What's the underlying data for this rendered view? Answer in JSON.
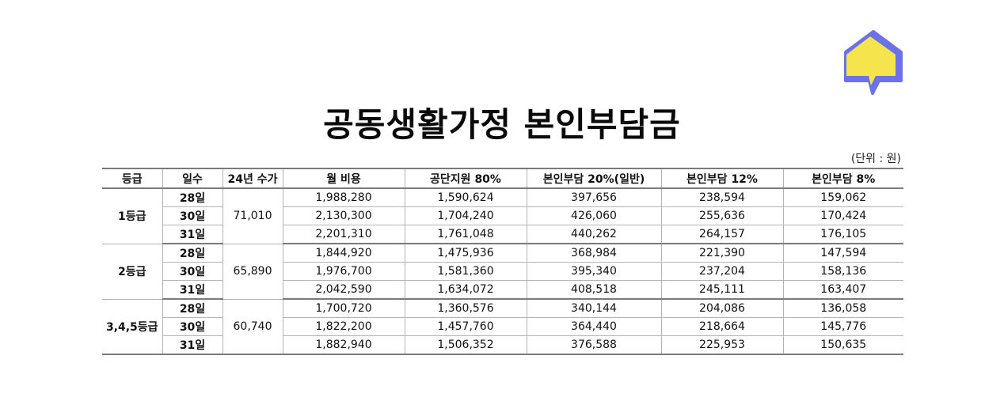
{
  "title": "공동생활가정 본인부담금",
  "unit_label": "(단위 : 원)",
  "logo": {
    "icon": "house-speech-bubble-icon",
    "fill": "#f6e44c",
    "stroke": "#6b72e8"
  },
  "table": {
    "headers": [
      "등급",
      "일수",
      "24년 수가",
      "월 비용",
      "공단지원 80%",
      "본인부담 20%(일반)",
      "본인부담 12%",
      "본인부담 8%"
    ],
    "groups": [
      {
        "grade": "1등급",
        "fee": "71,010",
        "rows": [
          {
            "days": "28일",
            "monthly": "1,988,280",
            "support80": "1,590,624",
            "self20": "397,656",
            "self12": "238,594",
            "self8": "159,062"
          },
          {
            "days": "30일",
            "monthly": "2,130,300",
            "support80": "1,704,240",
            "self20": "426,060",
            "self12": "255,636",
            "self8": "170,424"
          },
          {
            "days": "31일",
            "monthly": "2,201,310",
            "support80": "1,761,048",
            "self20": "440,262",
            "self12": "264,157",
            "self8": "176,105"
          }
        ]
      },
      {
        "grade": "2등급",
        "fee": "65,890",
        "rows": [
          {
            "days": "28일",
            "monthly": "1,844,920",
            "support80": "1,475,936",
            "self20": "368,984",
            "self12": "221,390",
            "self8": "147,594"
          },
          {
            "days": "30일",
            "monthly": "1,976,700",
            "support80": "1,581,360",
            "self20": "395,340",
            "self12": "237,204",
            "self8": "158,136"
          },
          {
            "days": "31일",
            "monthly": "2,042,590",
            "support80": "1,634,072",
            "self20": "408,518",
            "self12": "245,111",
            "self8": "163,407"
          }
        ]
      },
      {
        "grade": "3,4,5등급",
        "fee": "60,740",
        "rows": [
          {
            "days": "28일",
            "monthly": "1,700,720",
            "support80": "1,360,576",
            "self20": "340,144",
            "self12": "204,086",
            "self8": "136,058"
          },
          {
            "days": "30일",
            "monthly": "1,822,200",
            "support80": "1,457,760",
            "self20": "364,440",
            "self12": "218,664",
            "self8": "145,776"
          },
          {
            "days": "31일",
            "monthly": "1,882,940",
            "support80": "1,506,352",
            "self20": "376,588",
            "self12": "225,953",
            "self8": "150,635"
          }
        ]
      }
    ]
  }
}
